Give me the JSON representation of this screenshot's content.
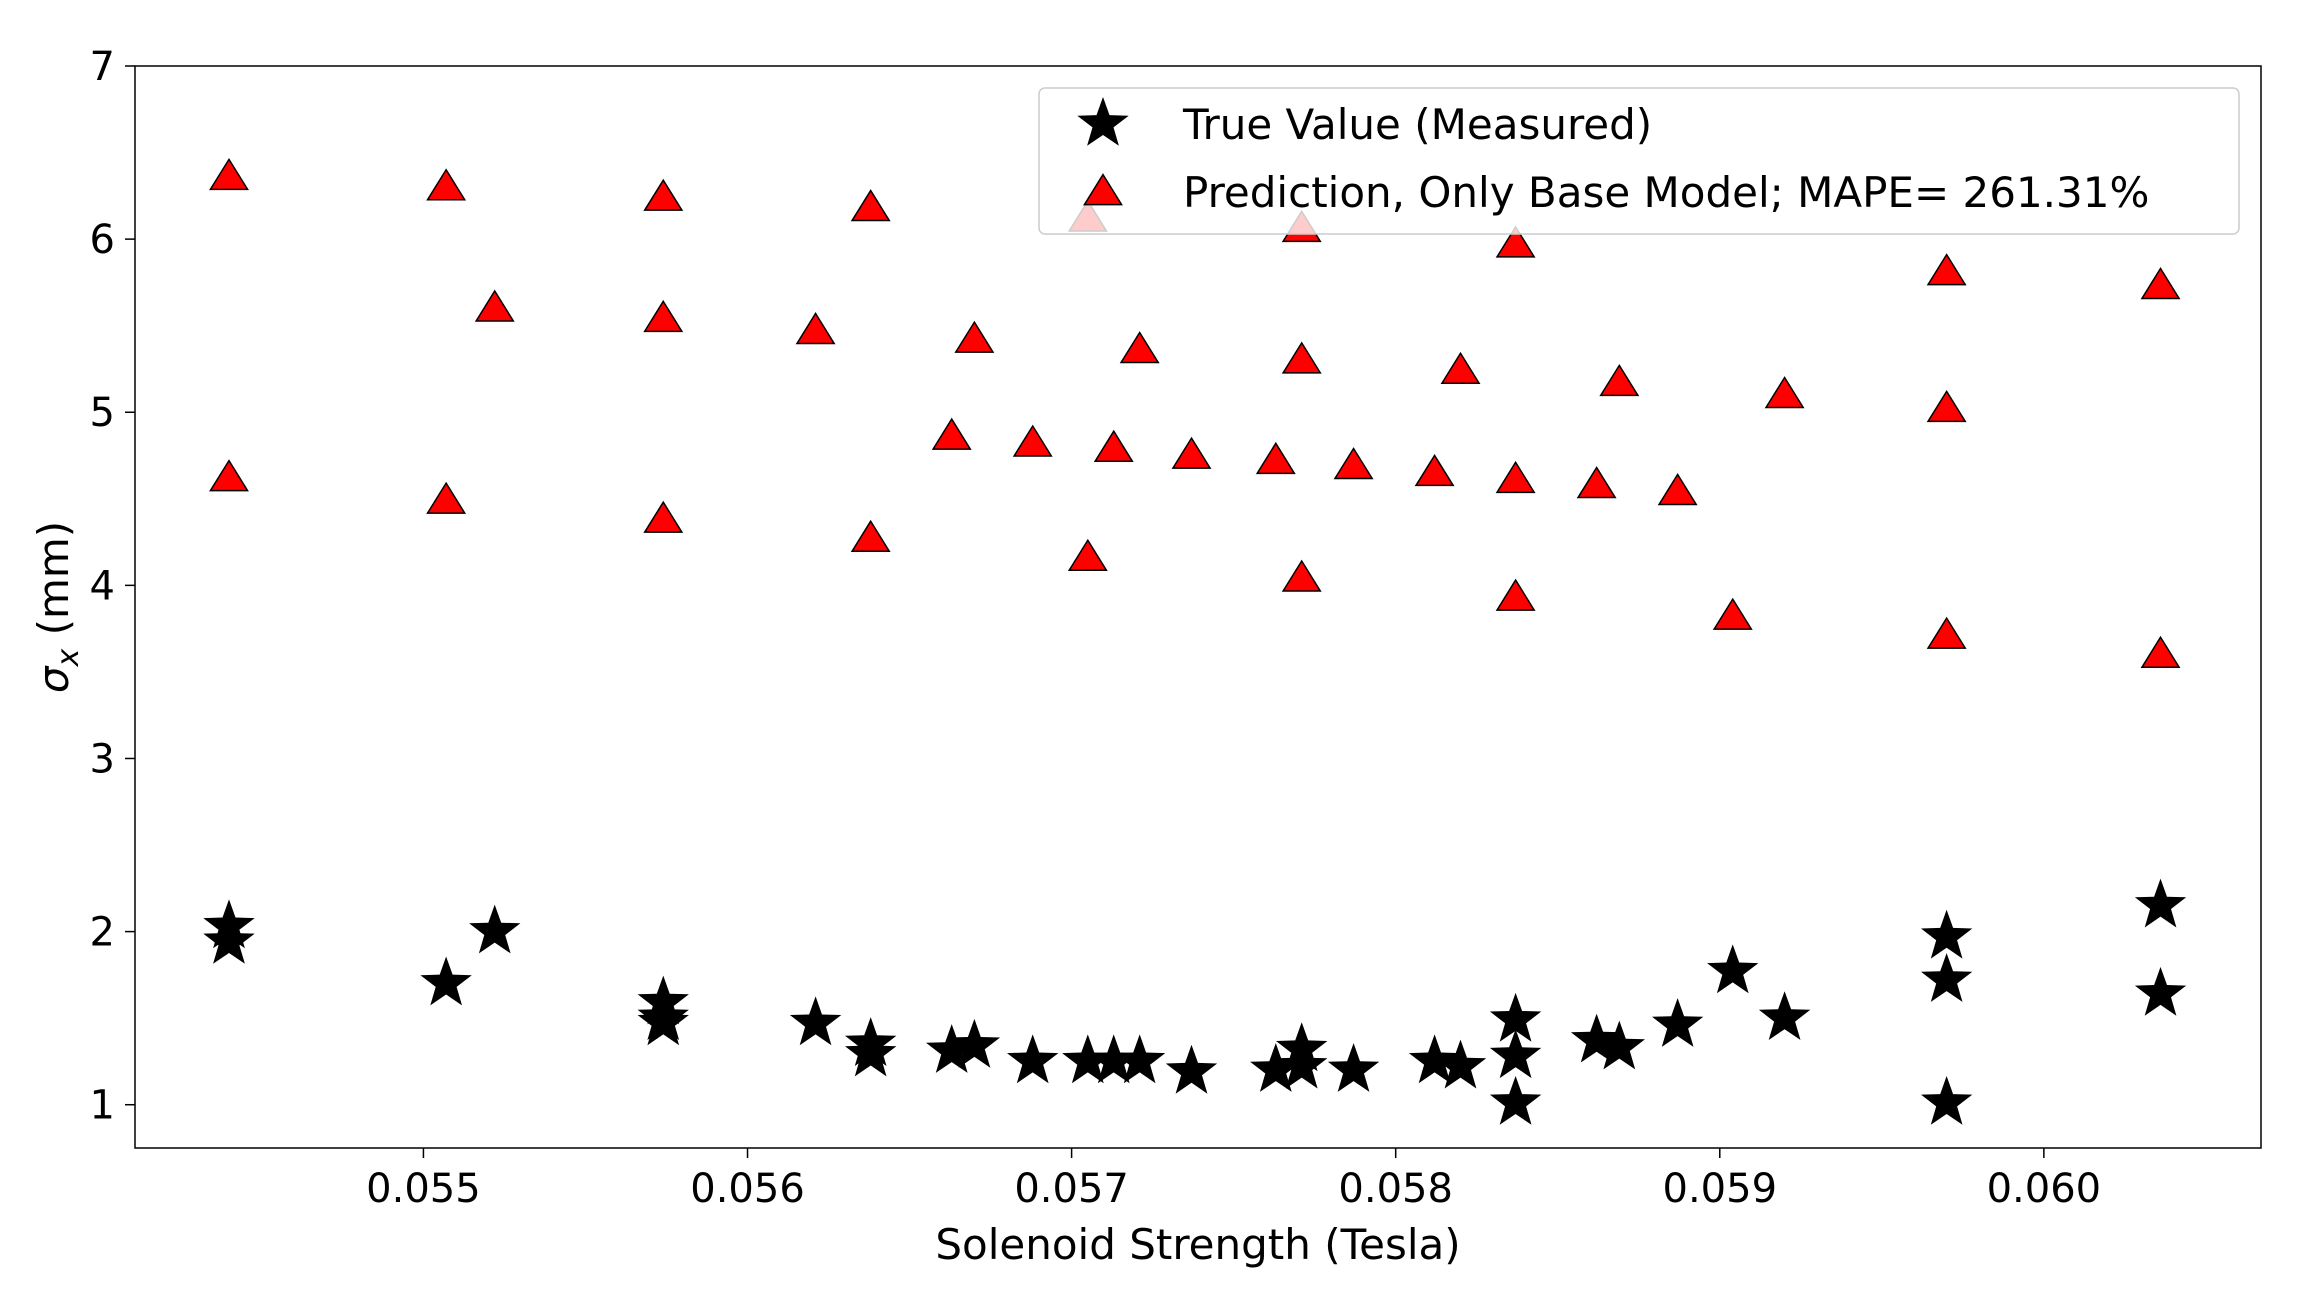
{
  "chart_data": {
    "type": "scatter",
    "title": "",
    "xlabel": "Solenoid Strength (Tesla)",
    "ylabel_symbol": "σ",
    "ylabel_subscript": "x",
    "ylabel_unit": " (mm)",
    "xlim": [
      0.05411,
      0.06067
    ],
    "ylim": [
      0.75,
      7.0
    ],
    "xticks": [
      0.055,
      0.056,
      0.057,
      0.058,
      0.059,
      0.06
    ],
    "xtick_labels": [
      "0.055",
      "0.056",
      "0.057",
      "0.058",
      "0.059",
      "0.060"
    ],
    "yticks": [
      1,
      2,
      3,
      4,
      5,
      6,
      7
    ],
    "ytick_labels": [
      "1",
      "2",
      "3",
      "4",
      "5",
      "6",
      "7"
    ],
    "grid": false,
    "legend_position": "top-right",
    "series": [
      {
        "name": "True Value (Measured)",
        "marker": "star",
        "color": "#000000",
        "points": [
          {
            "x": 0.0544,
            "y": 2.03
          },
          {
            "x": 0.0544,
            "y": 1.94
          },
          {
            "x": 0.05507,
            "y": 1.7
          },
          {
            "x": 0.05522,
            "y": 2.0
          },
          {
            "x": 0.05574,
            "y": 1.59
          },
          {
            "x": 0.05574,
            "y": 1.5
          },
          {
            "x": 0.05574,
            "y": 1.47
          },
          {
            "x": 0.05621,
            "y": 1.47
          },
          {
            "x": 0.05638,
            "y": 1.35
          },
          {
            "x": 0.05638,
            "y": 1.29
          },
          {
            "x": 0.05663,
            "y": 1.31
          },
          {
            "x": 0.0567,
            "y": 1.34
          },
          {
            "x": 0.05688,
            "y": 1.25
          },
          {
            "x": 0.05705,
            "y": 1.25
          },
          {
            "x": 0.05713,
            "y": 1.25
          },
          {
            "x": 0.05721,
            "y": 1.25
          },
          {
            "x": 0.05737,
            "y": 1.19
          },
          {
            "x": 0.05763,
            "y": 1.2
          },
          {
            "x": 0.05771,
            "y": 1.32
          },
          {
            "x": 0.05771,
            "y": 1.22
          },
          {
            "x": 0.05787,
            "y": 1.2
          },
          {
            "x": 0.05812,
            "y": 1.25
          },
          {
            "x": 0.0582,
            "y": 1.22
          },
          {
            "x": 0.05837,
            "y": 1.49
          },
          {
            "x": 0.05837,
            "y": 1.28
          },
          {
            "x": 0.05837,
            "y": 1.01
          },
          {
            "x": 0.05862,
            "y": 1.37
          },
          {
            "x": 0.05869,
            "y": 1.33
          },
          {
            "x": 0.05887,
            "y": 1.46
          },
          {
            "x": 0.05904,
            "y": 1.77
          },
          {
            "x": 0.0592,
            "y": 1.5
          },
          {
            "x": 0.0597,
            "y": 1.97
          },
          {
            "x": 0.0597,
            "y": 1.72
          },
          {
            "x": 0.0597,
            "y": 1.01
          },
          {
            "x": 0.06036,
            "y": 2.15
          },
          {
            "x": 0.06036,
            "y": 1.64
          }
        ]
      },
      {
        "name": "Prediction, Only Base Model; MAPE= 261.31%",
        "marker": "triangle",
        "color": "#ff0000",
        "edge_color": "#000000",
        "points": [
          {
            "x": 0.0544,
            "y": 6.36
          },
          {
            "x": 0.0544,
            "y": 4.62
          },
          {
            "x": 0.05507,
            "y": 6.3
          },
          {
            "x": 0.05507,
            "y": 4.49
          },
          {
            "x": 0.05522,
            "y": 5.6
          },
          {
            "x": 0.05574,
            "y": 6.24
          },
          {
            "x": 0.05574,
            "y": 5.54
          },
          {
            "x": 0.05574,
            "y": 4.38
          },
          {
            "x": 0.05621,
            "y": 5.47
          },
          {
            "x": 0.05638,
            "y": 6.18
          },
          {
            "x": 0.05638,
            "y": 4.27
          },
          {
            "x": 0.05663,
            "y": 4.86
          },
          {
            "x": 0.0567,
            "y": 5.42
          },
          {
            "x": 0.05688,
            "y": 4.82
          },
          {
            "x": 0.05705,
            "y": 6.12
          },
          {
            "x": 0.05705,
            "y": 4.16
          },
          {
            "x": 0.05713,
            "y": 4.79
          },
          {
            "x": 0.05721,
            "y": 5.36
          },
          {
            "x": 0.05737,
            "y": 4.75
          },
          {
            "x": 0.05763,
            "y": 4.72
          },
          {
            "x": 0.05771,
            "y": 6.06
          },
          {
            "x": 0.05771,
            "y": 5.3
          },
          {
            "x": 0.05771,
            "y": 4.04
          },
          {
            "x": 0.05787,
            "y": 4.69
          },
          {
            "x": 0.05812,
            "y": 4.65
          },
          {
            "x": 0.0582,
            "y": 5.24
          },
          {
            "x": 0.05837,
            "y": 5.97
          },
          {
            "x": 0.05837,
            "y": 4.61
          },
          {
            "x": 0.05837,
            "y": 3.93
          },
          {
            "x": 0.05862,
            "y": 4.58
          },
          {
            "x": 0.05869,
            "y": 5.17
          },
          {
            "x": 0.05887,
            "y": 4.54
          },
          {
            "x": 0.05904,
            "y": 3.82
          },
          {
            "x": 0.0592,
            "y": 5.1
          },
          {
            "x": 0.0597,
            "y": 5.81
          },
          {
            "x": 0.0597,
            "y": 5.02
          },
          {
            "x": 0.0597,
            "y": 3.71
          },
          {
            "x": 0.06036,
            "y": 5.73
          },
          {
            "x": 0.06036,
            "y": 3.6
          }
        ]
      }
    ]
  }
}
